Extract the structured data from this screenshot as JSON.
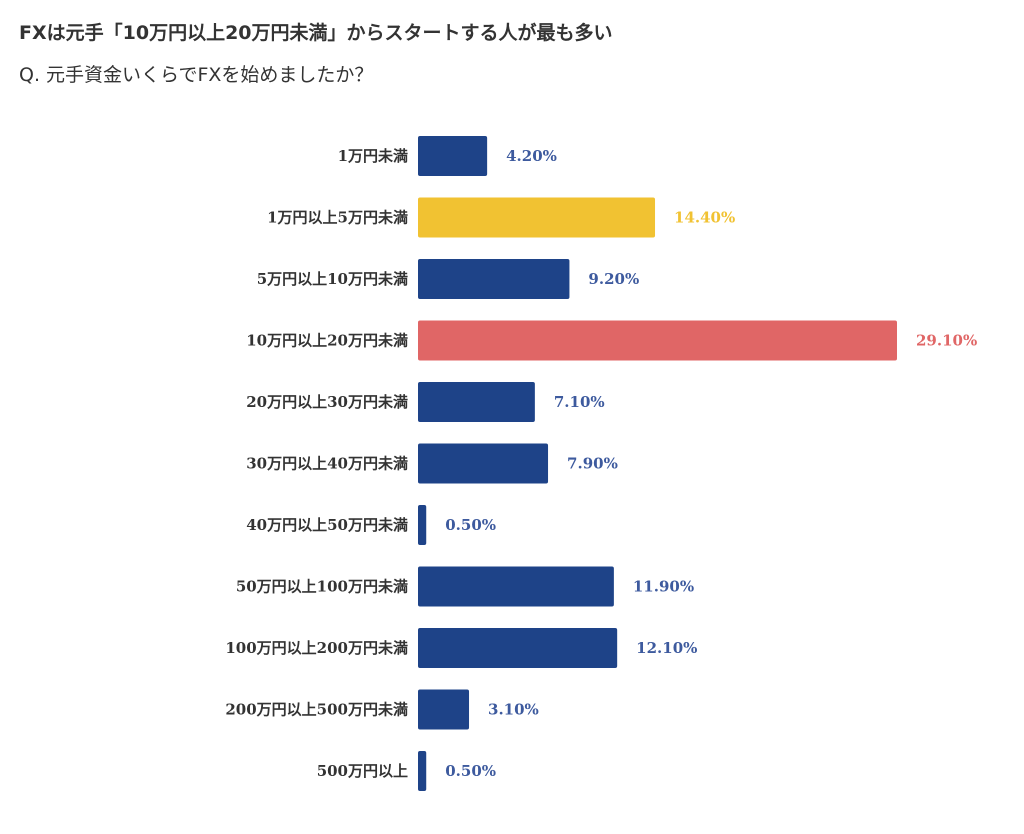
{
  "header": {
    "title": "FXは元手「10万円以上20万円未満」からスタートする人が最も多い",
    "question": "Q. 元手資金いくらでFXを始めましたか？"
  },
  "colors": {
    "default": "#1e4388",
    "highlight_yellow": "#f1c232",
    "highlight_red": "#e06666",
    "label_default": "#3d5a9e",
    "label_yellow": "#f1c232",
    "label_red": "#e06666"
  },
  "chart_data": {
    "type": "bar",
    "orientation": "horizontal",
    "categories": [
      "1万円未満",
      "1万円以上5万円未満",
      "5万円以上10万円未満",
      "10万円以上20万円未満",
      "20万円以上30万円未満",
      "30万円以上40万円未満",
      "40万円以上50万円未満",
      "50万円以上100万円未満",
      "100万円以上200万円未満",
      "200万円以上500万円未満",
      "500万円以上"
    ],
    "values": [
      4.2,
      14.4,
      9.2,
      29.1,
      7.1,
      7.9,
      0.5,
      11.9,
      12.1,
      3.1,
      0.5
    ],
    "value_labels": [
      "4.20%",
      "14.40%",
      "9.20%",
      "29.10%",
      "7.10%",
      "7.90%",
      "0.50%",
      "11.90%",
      "12.10%",
      "3.10%",
      "0.50%"
    ],
    "bar_colors": [
      "default",
      "highlight_yellow",
      "default",
      "highlight_red",
      "default",
      "default",
      "default",
      "default",
      "default",
      "default",
      "default"
    ],
    "xlim": [
      0,
      29.1
    ],
    "grid": false,
    "legend": "none",
    "axes_visible": false
  }
}
